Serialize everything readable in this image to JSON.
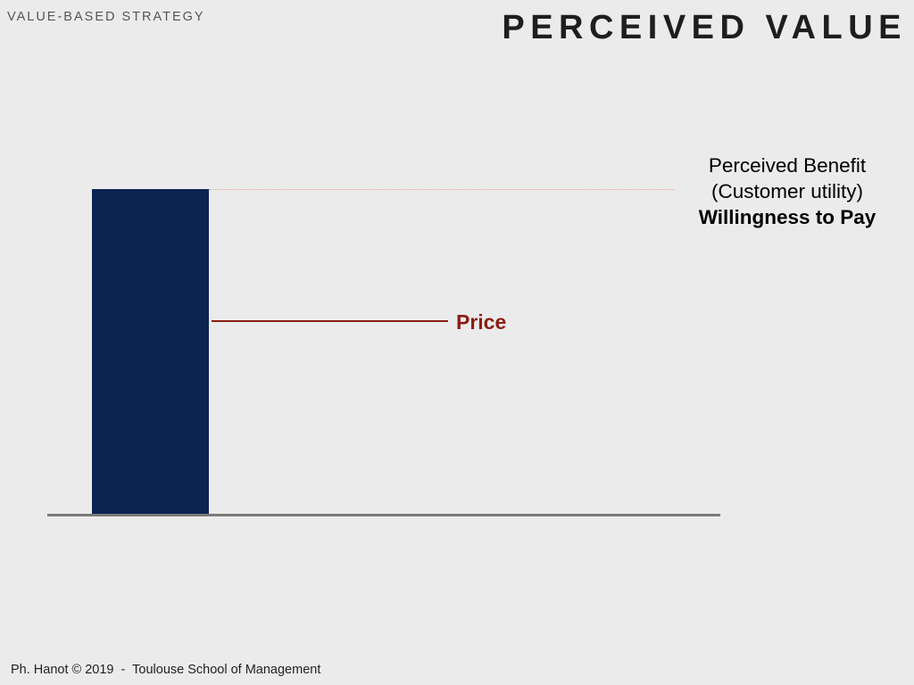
{
  "header": {
    "section": "VALUE-BASED STRATEGY",
    "title": "PERCEIVED VALUE"
  },
  "diagram": {
    "price_label": "Price",
    "benefit": {
      "line1": "Perceived Benefit",
      "line2": "(Customer utility)",
      "line3": "Willingness to Pay"
    },
    "colors": {
      "bar": "#0c2452",
      "price": "#8a1e12",
      "background": "#ebebeb",
      "baseline": "#7a7a7a"
    }
  },
  "footer": {
    "text": "Ph. Hanot © 2019  -  Toulouse School of Management"
  }
}
